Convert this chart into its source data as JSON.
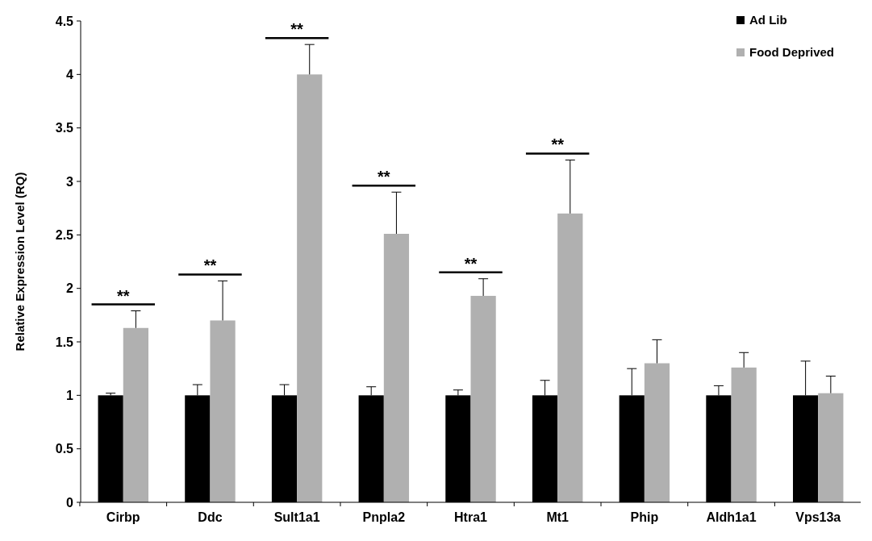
{
  "chart_data": {
    "type": "bar",
    "ylabel": "Relative Expression Level (RQ)",
    "categories": [
      "Cirbp",
      "Ddc",
      "Sult1a1",
      "Pnpla2",
      "Htra1",
      "Mt1",
      "Phip",
      "Aldh1a1",
      "Vps13a"
    ],
    "series": [
      {
        "name": "Ad Lib",
        "color": "#000000",
        "values": [
          1,
          1,
          1,
          1,
          1,
          1,
          1,
          1,
          1
        ],
        "errors": [
          [
            1,
            1.02
          ],
          [
            1,
            1.1
          ],
          [
            1,
            1.1
          ],
          [
            1,
            1.08
          ],
          [
            1,
            1.05
          ],
          [
            1,
            1.14
          ],
          [
            1,
            1.25
          ],
          [
            1,
            1.09
          ],
          [
            1,
            1.32
          ]
        ]
      },
      {
        "name": "Food Deprived",
        "color": "#b0b0b0",
        "values": [
          1.63,
          1.7,
          4.0,
          2.51,
          1.93,
          2.7,
          1.3,
          1.26,
          1.02
        ],
        "errors": [
          [
            1.63,
            1.79
          ],
          [
            1.7,
            2.07
          ],
          [
            4.0,
            4.28
          ],
          [
            2.51,
            2.9
          ],
          [
            1.93,
            2.09
          ],
          [
            2.7,
            3.2
          ],
          [
            1.3,
            1.52
          ],
          [
            1.26,
            1.4
          ],
          [
            1.02,
            1.18
          ]
        ]
      }
    ],
    "ylim": [
      0,
      4.5
    ],
    "yticks": [
      0,
      0.5,
      1,
      1.5,
      2,
      2.5,
      3,
      3.5,
      4,
      4.5
    ],
    "legend": "top right",
    "grid": false,
    "annotations": [
      "**",
      "**",
      "**",
      "**",
      "**",
      "**"
    ]
  }
}
